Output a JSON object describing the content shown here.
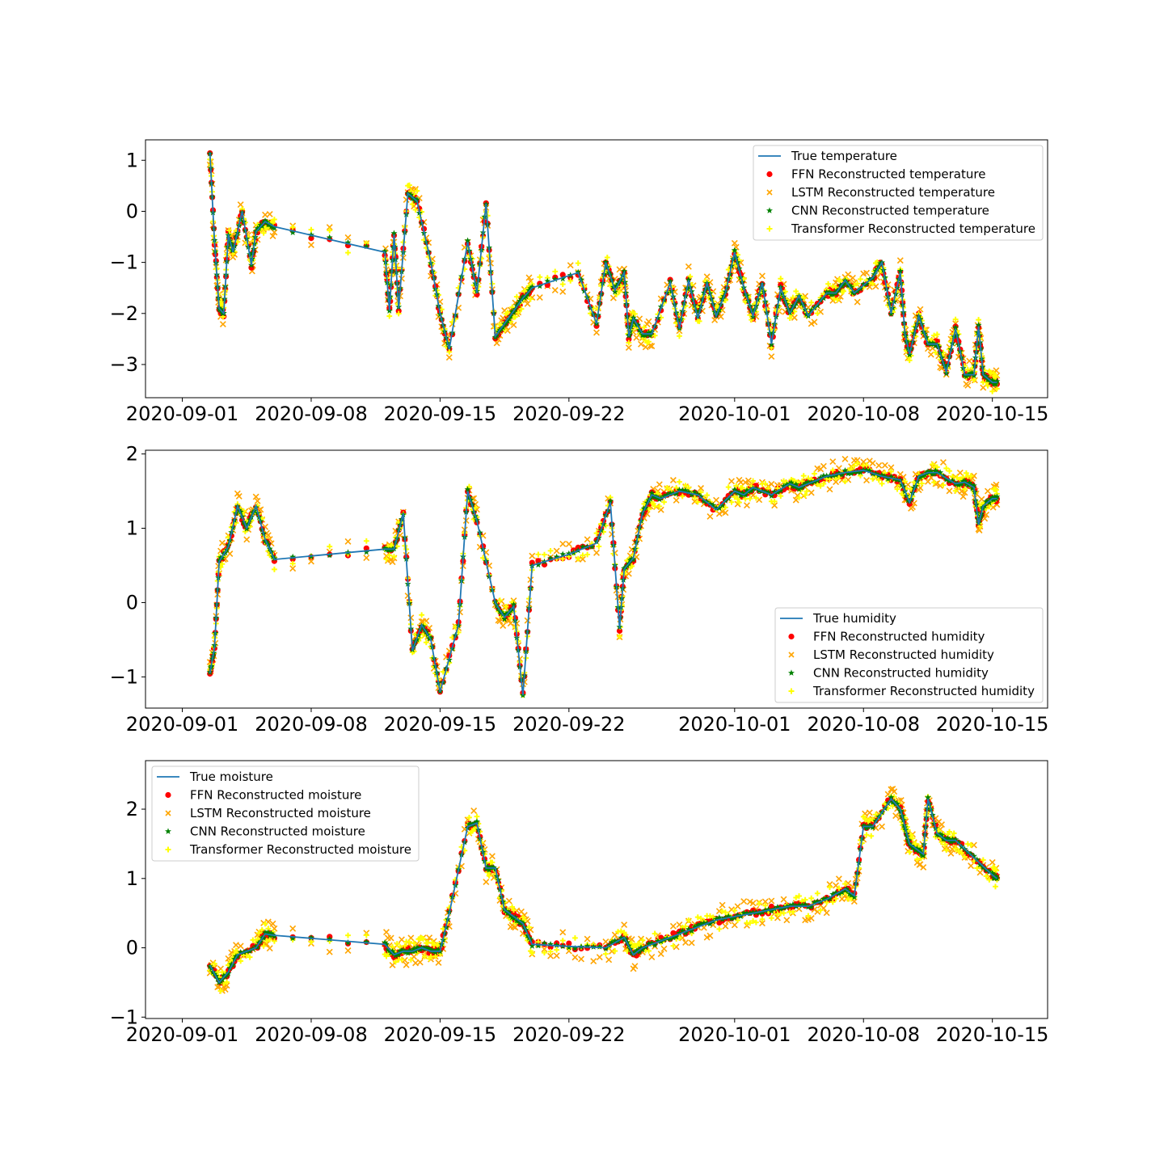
{
  "figure": {
    "colors": {
      "true": "#1f77b4",
      "ffn": "#ff0000",
      "lstm": "#ffa500",
      "cnn": "#008000",
      "transformer": "#ffff00"
    }
  },
  "chart_data": [
    {
      "type": "line",
      "title": "",
      "xlabel": "",
      "ylabel": "",
      "xlim": [
        "2020-08-30",
        "2020-10-18"
      ],
      "ylim": [
        -3.65,
        1.4
      ],
      "x_ticks": [
        "2020-09-01",
        "2020-09-08",
        "2020-09-15",
        "2020-09-22",
        "2020-10-01",
        "2020-10-08",
        "2020-10-15"
      ],
      "y_ticks": [
        1,
        0,
        -1,
        -2,
        -3
      ],
      "legend_position": "upper right",
      "legend": [
        "True temperature",
        "FFN Reconstructed temperature",
        "LSTM Reconstructed temperature",
        "CNN Reconstructed temperature",
        "Transformer Reconstructed temperature"
      ],
      "series": [
        {
          "name": "True temperature",
          "x": [
            "2020-09-02 12:00",
            "2020-09-02 18:00",
            "2020-09-03 00:00",
            "2020-09-03 06:00",
            "2020-09-03 12:00",
            "2020-09-03 18:00",
            "2020-09-04 06:00",
            "2020-09-04 18:00",
            "2020-09-05 00:00",
            "2020-09-05 12:00",
            "2020-09-06 00:00",
            "2020-09-12 00:00",
            "2020-09-12 06:00",
            "2020-09-12 12:00",
            "2020-09-12 18:00",
            "2020-09-13 06:00",
            "2020-09-13 18:00",
            "2020-09-14 12:00",
            "2020-09-15 00:00",
            "2020-09-15 12:00",
            "2020-09-16 12:00",
            "2020-09-17 00:00",
            "2020-09-17 12:00",
            "2020-09-18 00:00",
            "2020-09-18 12:00",
            "2020-09-19 00:00",
            "2020-09-19 12:00",
            "2020-09-20 00:00",
            "2020-09-22 12:00",
            "2020-09-23 12:00",
            "2020-09-24 00:00",
            "2020-09-24 12:00",
            "2020-09-25 00:00",
            "2020-09-25 06:00",
            "2020-09-25 12:00",
            "2020-09-26 00:00",
            "2020-09-26 12:00",
            "2020-09-27 12:00",
            "2020-09-28 00:00",
            "2020-09-28 12:00",
            "2020-09-29 00:00",
            "2020-09-29 12:00",
            "2020-09-30 00:00",
            "2020-09-30 12:00",
            "2020-10-01 00:00",
            "2020-10-01 12:00",
            "2020-10-02 00:00",
            "2020-10-02 12:00",
            "2020-10-03 00:00",
            "2020-10-03 12:00",
            "2020-10-04 00:00",
            "2020-10-04 12:00",
            "2020-10-05 00:00",
            "2020-10-06 00:00",
            "2020-10-06 12:00",
            "2020-10-07 00:00",
            "2020-10-07 12:00",
            "2020-10-08 12:00",
            "2020-10-09 00:00",
            "2020-10-09 12:00",
            "2020-10-10 00:00",
            "2020-10-10 06:00",
            "2020-10-10 12:00",
            "2020-10-11 00:00",
            "2020-10-11 12:00",
            "2020-10-12 00:00",
            "2020-10-12 12:00",
            "2020-10-13 00:00",
            "2020-10-13 12:00",
            "2020-10-14 00:00",
            "2020-10-14 06:00",
            "2020-10-14 12:00",
            "2020-10-15 00:00",
            "2020-10-15 06:00"
          ],
          "y": [
            1.15,
            -0.6,
            -1.9,
            -2.0,
            -0.45,
            -0.8,
            0.0,
            -1.05,
            -0.4,
            -0.2,
            -0.3,
            -0.8,
            -1.95,
            -0.45,
            -1.9,
            0.35,
            0.2,
            -1.0,
            -2.0,
            -2.7,
            -0.6,
            -1.6,
            0.15,
            -2.45,
            -2.2,
            -1.95,
            -1.7,
            -1.5,
            -1.2,
            -2.2,
            -1.0,
            -1.55,
            -1.2,
            -2.45,
            -2.1,
            -2.4,
            -2.4,
            -1.4,
            -2.3,
            -1.35,
            -2.1,
            -1.4,
            -2.05,
            -1.6,
            -0.8,
            -1.5,
            -2.05,
            -1.4,
            -2.6,
            -1.5,
            -2.0,
            -1.65,
            -2.05,
            -1.6,
            -1.6,
            -1.35,
            -1.6,
            -1.3,
            -1.0,
            -2.0,
            -1.2,
            -2.4,
            -2.8,
            -2.05,
            -2.6,
            -2.6,
            -3.15,
            -2.3,
            -3.2,
            -3.2,
            -2.25,
            -3.2,
            -3.35,
            -3.35
          ]
        }
      ]
    },
    {
      "type": "line",
      "title": "",
      "xlabel": "",
      "ylabel": "",
      "xlim": [
        "2020-08-30",
        "2020-10-18"
      ],
      "ylim": [
        -1.42,
        2.05
      ],
      "x_ticks": [
        "2020-09-01",
        "2020-09-08",
        "2020-09-15",
        "2020-09-22",
        "2020-10-01",
        "2020-10-08",
        "2020-10-15"
      ],
      "y_ticks": [
        2,
        1,
        0,
        -1
      ],
      "legend_position": "lower right",
      "legend": [
        "True humidity",
        "FFN Reconstructed humidity",
        "LSTM Reconstructed humidity",
        "CNN Reconstructed humidity",
        "Transformer Reconstructed humidity"
      ],
      "series": [
        {
          "name": "True humidity",
          "x": [
            "2020-09-02 12:00",
            "2020-09-02 18:00",
            "2020-09-03 00:00",
            "2020-09-03 12:00",
            "2020-09-04 00:00",
            "2020-09-04 12:00",
            "2020-09-05 00:00",
            "2020-09-05 12:00",
            "2020-09-06 00:00",
            "2020-09-12 00:00",
            "2020-09-12 12:00",
            "2020-09-13 00:00",
            "2020-09-13 12:00",
            "2020-09-14 00:00",
            "2020-09-14 12:00",
            "2020-09-15 00:00",
            "2020-09-16 00:00",
            "2020-09-16 12:00",
            "2020-09-17 00:00",
            "2020-09-18 00:00",
            "2020-09-18 12:00",
            "2020-09-19 00:00",
            "2020-09-19 12:00",
            "2020-09-20 00:00",
            "2020-09-22 00:00",
            "2020-09-23 12:00",
            "2020-09-24 06:00",
            "2020-09-24 18:00",
            "2020-09-25 00:00",
            "2020-09-25 12:00",
            "2020-09-26 00:00",
            "2020-09-26 12:00",
            "2020-09-27 00:00",
            "2020-09-28 00:00",
            "2020-09-29 00:00",
            "2020-09-30 00:00",
            "2020-10-01 00:00",
            "2020-10-01 12:00",
            "2020-10-02 00:00",
            "2020-10-03 00:00",
            "2020-10-04 00:00",
            "2020-10-04 12:00",
            "2020-10-05 00:00",
            "2020-10-06 00:00",
            "2020-10-07 00:00",
            "2020-10-08 00:00",
            "2020-10-09 00:00",
            "2020-10-10 00:00",
            "2020-10-10 12:00",
            "2020-10-11 00:00",
            "2020-10-11 12:00",
            "2020-10-12 00:00",
            "2020-10-13 00:00",
            "2020-10-13 12:00",
            "2020-10-14 00:00",
            "2020-10-14 06:00",
            "2020-10-14 12:00",
            "2020-10-15 00:00",
            "2020-10-15 06:00"
          ],
          "y": [
            -0.95,
            -0.6,
            0.55,
            0.75,
            1.3,
            1.0,
            1.3,
            0.85,
            0.58,
            0.72,
            0.72,
            1.2,
            -0.65,
            -0.3,
            -0.5,
            -1.2,
            -0.3,
            1.5,
            1.1,
            0.0,
            -0.2,
            -0.05,
            -1.25,
            0.5,
            0.65,
            0.8,
            1.35,
            -0.35,
            0.45,
            0.6,
            1.2,
            1.45,
            1.4,
            1.5,
            1.45,
            1.25,
            1.5,
            1.45,
            1.55,
            1.45,
            1.6,
            1.55,
            1.6,
            1.7,
            1.75,
            1.78,
            1.7,
            1.65,
            1.35,
            1.7,
            1.75,
            1.75,
            1.6,
            1.62,
            1.55,
            1.05,
            1.3,
            1.4,
            1.4
          ]
        }
      ]
    },
    {
      "type": "line",
      "title": "",
      "xlabel": "",
      "ylabel": "",
      "xlim": [
        "2020-08-30",
        "2020-10-18"
      ],
      "ylim": [
        -1.02,
        2.7
      ],
      "x_ticks": [
        "2020-09-01",
        "2020-09-08",
        "2020-09-15",
        "2020-09-22",
        "2020-10-01",
        "2020-10-08",
        "2020-10-15"
      ],
      "y_ticks": [
        2,
        1,
        0,
        -1
      ],
      "legend_position": "upper left",
      "legend": [
        "True moisture",
        "FFN Reconstructed moisture",
        "LSTM Reconstructed moisture",
        "CNN Reconstructed moisture",
        "Transformer Reconstructed moisture"
      ],
      "series": [
        {
          "name": "True moisture",
          "x": [
            "2020-09-02 12:00",
            "2020-09-03 00:00",
            "2020-09-03 12:00",
            "2020-09-04 00:00",
            "2020-09-05 00:00",
            "2020-09-05 12:00",
            "2020-09-06 00:00",
            "2020-09-12 00:00",
            "2020-09-12 12:00",
            "2020-09-13 00:00",
            "2020-09-13 12:00",
            "2020-09-14 00:00",
            "2020-09-14 12:00",
            "2020-09-15 00:00",
            "2020-09-15 12:00",
            "2020-09-16 12:00",
            "2020-09-17 00:00",
            "2020-09-17 12:00",
            "2020-09-18 00:00",
            "2020-09-18 12:00",
            "2020-09-19 00:00",
            "2020-09-19 12:00",
            "2020-09-20 00:00",
            "2020-09-22 00:00",
            "2020-09-24 00:00",
            "2020-09-25 00:00",
            "2020-09-25 12:00",
            "2020-09-26 00:00",
            "2020-09-27 00:00",
            "2020-09-28 00:00",
            "2020-09-29 00:00",
            "2020-09-30 00:00",
            "2020-10-01 00:00",
            "2020-10-02 00:00",
            "2020-10-03 00:00",
            "2020-10-04 00:00",
            "2020-10-05 00:00",
            "2020-10-06 00:00",
            "2020-10-07 00:00",
            "2020-10-07 12:00",
            "2020-10-08 00:00",
            "2020-10-08 12:00",
            "2020-10-09 12:00",
            "2020-10-10 00:00",
            "2020-10-10 06:00",
            "2020-10-10 12:00",
            "2020-10-11 00:00",
            "2020-10-11 06:00",
            "2020-10-11 12:00",
            "2020-10-12 00:00",
            "2020-10-12 12:00",
            "2020-10-13 00:00",
            "2020-10-14 00:00",
            "2020-10-15 00:00",
            "2020-10-15 06:00"
          ],
          "y": [
            -0.25,
            -0.5,
            -0.35,
            -0.1,
            0.0,
            0.2,
            0.18,
            0.05,
            -0.1,
            -0.05,
            -0.05,
            0.0,
            -0.05,
            -0.05,
            0.5,
            1.75,
            1.8,
            1.15,
            1.15,
            0.55,
            0.45,
            0.35,
            0.05,
            0.02,
            0.0,
            0.15,
            -0.1,
            0.0,
            0.1,
            0.2,
            0.3,
            0.4,
            0.45,
            0.5,
            0.55,
            0.6,
            0.6,
            0.7,
            0.85,
            0.75,
            1.75,
            1.75,
            2.15,
            2.0,
            1.75,
            1.5,
            1.4,
            1.35,
            2.15,
            1.65,
            1.55,
            1.55,
            1.3,
            1.05,
            1.0
          ]
        }
      ]
    }
  ]
}
